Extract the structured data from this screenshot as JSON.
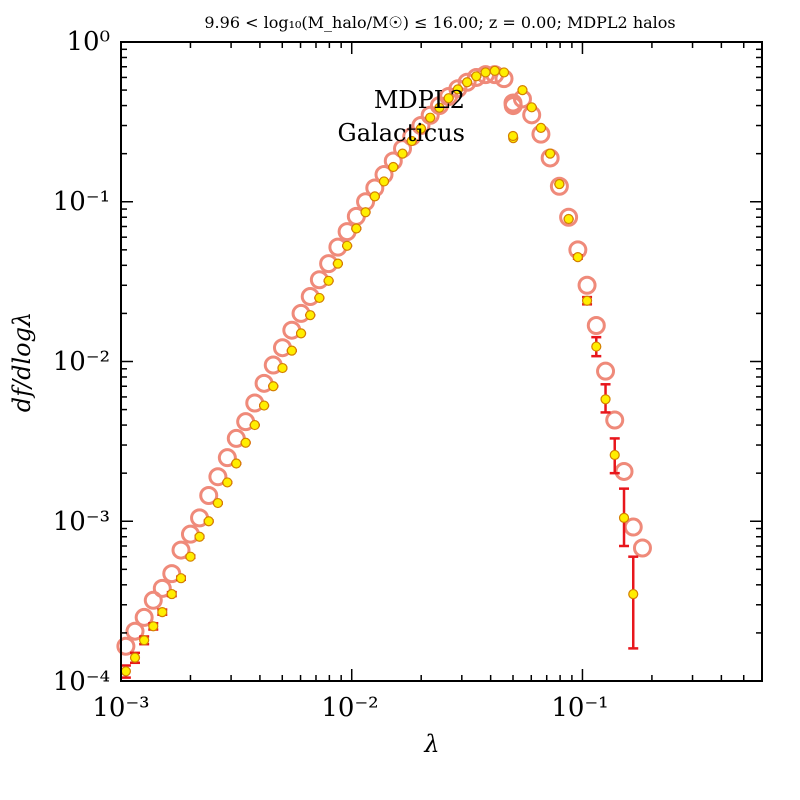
{
  "chart_data": {
    "type": "scatter",
    "title": "9.96 < log₁₀(M_halo/M☉) ≤ 16.00; z = 0.00; MDPL2 halos",
    "xlabel": "λ",
    "ylabel": "df/dlogλ",
    "x_scale": "log",
    "y_scale": "log",
    "xlim": [
      0.001,
      0.6
    ],
    "ylim": [
      0.0001,
      1.0
    ],
    "x_tick_labels": [
      "10⁻³",
      "10⁻²",
      "10⁻¹"
    ],
    "y_tick_labels": [
      "10⁻⁴",
      "10⁻³",
      "10⁻²",
      "10⁻¹",
      "10⁰"
    ],
    "legend_position": "upper-center",
    "series": [
      {
        "name": "MDPL2",
        "marker": "open-circle",
        "color": "#ef8a7a",
        "points": [
          [
            0.00105,
            0.000165
          ],
          [
            0.00115,
            0.000205
          ],
          [
            0.00126,
            0.00025
          ],
          [
            0.00138,
            0.00032
          ],
          [
            0.00151,
            0.00038
          ],
          [
            0.00166,
            0.00047
          ],
          [
            0.00182,
            0.00066
          ],
          [
            0.002,
            0.00083
          ],
          [
            0.00219,
            0.00105
          ],
          [
            0.0024,
            0.00145
          ],
          [
            0.00263,
            0.0019
          ],
          [
            0.00289,
            0.0025
          ],
          [
            0.00316,
            0.0033
          ],
          [
            0.00347,
            0.0042
          ],
          [
            0.0038,
            0.0055
          ],
          [
            0.00417,
            0.0073
          ],
          [
            0.00457,
            0.0095
          ],
          [
            0.00501,
            0.0122
          ],
          [
            0.0055,
            0.0157
          ],
          [
            0.00603,
            0.02
          ],
          [
            0.00661,
            0.0255
          ],
          [
            0.00724,
            0.0325
          ],
          [
            0.00794,
            0.041
          ],
          [
            0.00871,
            0.052
          ],
          [
            0.00955,
            0.065
          ],
          [
            0.01047,
            0.081
          ],
          [
            0.01148,
            0.1
          ],
          [
            0.01259,
            0.122
          ],
          [
            0.0138,
            0.148
          ],
          [
            0.01514,
            0.18
          ],
          [
            0.0166,
            0.215
          ],
          [
            0.0182,
            0.256
          ],
          [
            0.01995,
            0.3
          ],
          [
            0.02188,
            0.348
          ],
          [
            0.02399,
            0.4
          ],
          [
            0.0263,
            0.456
          ],
          [
            0.02884,
            0.51
          ],
          [
            0.03162,
            0.56
          ],
          [
            0.03467,
            0.6
          ],
          [
            0.03802,
            0.625
          ],
          [
            0.04169,
            0.625
          ],
          [
            0.04571,
            0.59
          ],
          [
            0.05012,
            0.4
          ],
          [
            0.05496,
            0.44
          ],
          [
            0.06026,
            0.35
          ],
          [
            0.06607,
            0.265
          ],
          [
            0.07244,
            0.188
          ],
          [
            0.07943,
            0.125
          ],
          [
            0.0871,
            0.08
          ],
          [
            0.0955,
            0.05
          ],
          [
            0.1047,
            0.03
          ],
          [
            0.1148,
            0.0168
          ],
          [
            0.1259,
            0.0087
          ],
          [
            0.138,
            0.0043
          ],
          [
            0.1514,
            0.00205
          ],
          [
            0.166,
            0.00092
          ],
          [
            0.182,
            0.00068
          ]
        ]
      },
      {
        "name": "Galacticus",
        "marker": "filled-circle",
        "color": "#ffee00",
        "points": [
          [
            0.00105,
            0.000115
          ],
          [
            0.00115,
            0.00014
          ],
          [
            0.00126,
            0.00018
          ],
          [
            0.00138,
            0.00022
          ],
          [
            0.00151,
            0.00027
          ],
          [
            0.00166,
            0.00035
          ],
          [
            0.00182,
            0.00044
          ],
          [
            0.002,
            0.0006
          ],
          [
            0.00219,
            0.0008
          ],
          [
            0.0024,
            0.001
          ],
          [
            0.00263,
            0.0013
          ],
          [
            0.00289,
            0.00175
          ],
          [
            0.00316,
            0.0023
          ],
          [
            0.00347,
            0.0031
          ],
          [
            0.0038,
            0.004
          ],
          [
            0.00417,
            0.0053
          ],
          [
            0.00457,
            0.007
          ],
          [
            0.00501,
            0.0091
          ],
          [
            0.0055,
            0.0117
          ],
          [
            0.00603,
            0.015
          ],
          [
            0.00661,
            0.0195
          ],
          [
            0.00724,
            0.025
          ],
          [
            0.00794,
            0.032
          ],
          [
            0.00871,
            0.041
          ],
          [
            0.00955,
            0.053
          ],
          [
            0.01047,
            0.068
          ],
          [
            0.01148,
            0.086
          ],
          [
            0.01259,
            0.108
          ],
          [
            0.0138,
            0.134
          ],
          [
            0.01514,
            0.165
          ],
          [
            0.0166,
            0.2
          ],
          [
            0.0182,
            0.24
          ],
          [
            0.01995,
            0.287
          ],
          [
            0.02188,
            0.336
          ],
          [
            0.02399,
            0.388
          ],
          [
            0.0263,
            0.445
          ],
          [
            0.02884,
            0.505
          ],
          [
            0.03162,
            0.56
          ],
          [
            0.03467,
            0.61
          ],
          [
            0.03802,
            0.645
          ],
          [
            0.04169,
            0.66
          ],
          [
            0.04571,
            0.645
          ],
          [
            0.05012,
            0.25
          ],
          [
            0.05496,
            0.5
          ],
          [
            0.06026,
            0.39
          ],
          [
            0.06607,
            0.29
          ],
          [
            0.07244,
            0.2
          ],
          [
            0.07943,
            0.129
          ],
          [
            0.0871,
            0.078
          ],
          [
            0.0955,
            0.045
          ],
          [
            0.1047,
            0.024
          ],
          [
            0.1148,
            0.0124
          ],
          [
            0.1259,
            0.0058
          ],
          [
            0.138,
            0.0026
          ],
          [
            0.1514,
            0.00105
          ],
          [
            0.166,
            0.00035
          ]
        ],
        "error_bars": [
          [
            0.00105,
            0.000105,
            0.000125
          ],
          [
            0.00115,
            0.00013,
            0.00015
          ],
          [
            0.00126,
            0.00017,
            0.00019
          ],
          [
            0.00138,
            0.00021,
            0.00023
          ],
          [
            0.00151,
            0.00026,
            0.00028
          ],
          [
            0.00166,
            0.00034,
            0.00036
          ],
          [
            0.00182,
            0.00043,
            0.00045
          ],
          [
            0.002,
            0.00059,
            0.00061
          ],
          [
            0.00219,
            0.00079,
            0.00081
          ],
          [
            0.0024,
            0.00099,
            0.00101
          ],
          [
            0.00263,
            0.00129,
            0.00131
          ],
          [
            0.00289,
            0.00174,
            0.00176
          ],
          [
            0.00316,
            0.00229,
            0.00231
          ],
          [
            0.00347,
            0.00309,
            0.00311
          ],
          [
            0.0038,
            0.00399,
            0.00401
          ],
          [
            0.00417,
            0.00529,
            0.00531
          ],
          [
            0.00457,
            0.00699,
            0.00701
          ],
          [
            0.00501,
            0.00909,
            0.00911
          ],
          [
            0.0055,
            0.01169,
            0.01171
          ],
          [
            0.00603,
            0.01499,
            0.01501
          ],
          [
            0.00661,
            0.01949,
            0.01951
          ],
          [
            0.00724,
            0.02499,
            0.02501
          ],
          [
            0.00794,
            0.03199,
            0.03201
          ],
          [
            0.00871,
            0.04099,
            0.04101
          ],
          [
            0.00955,
            0.05299,
            0.05301
          ],
          [
            0.01047,
            0.06799,
            0.06801
          ],
          [
            0.01148,
            0.08599,
            0.08601
          ],
          [
            0.01259,
            0.10799,
            0.10801
          ],
          [
            0.0138,
            0.13399,
            0.13401
          ],
          [
            0.01514,
            0.16499,
            0.16501
          ],
          [
            0.0166,
            0.19999,
            0.20001
          ],
          [
            0.0182,
            0.23999,
            0.24001
          ],
          [
            0.01995,
            0.28699,
            0.28701
          ],
          [
            0.02188,
            0.33599,
            0.33601
          ],
          [
            0.02399,
            0.38799,
            0.38801
          ],
          [
            0.0263,
            0.44499,
            0.44501
          ],
          [
            0.02884,
            0.50499,
            0.50501
          ],
          [
            0.03162,
            0.55999,
            0.56001
          ],
          [
            0.03467,
            0.60999,
            0.61001
          ],
          [
            0.03802,
            0.64499,
            0.64501
          ],
          [
            0.04169,
            0.65999,
            0.66001
          ],
          [
            0.04571,
            0.64499,
            0.64501
          ],
          [
            0.05496,
            0.49999,
            0.50001
          ],
          [
            0.06026,
            0.38999,
            0.39001
          ],
          [
            0.06607,
            0.28999,
            0.29001
          ],
          [
            0.07244,
            0.19999,
            0.20001
          ],
          [
            0.07943,
            0.12899,
            0.12901
          ],
          [
            0.0871,
            0.07799,
            0.07801
          ],
          [
            0.0955,
            0.044,
            0.0462
          ],
          [
            0.1047,
            0.0228,
            0.0253
          ],
          [
            0.1148,
            0.0108,
            0.0142
          ],
          [
            0.1259,
            0.0048,
            0.0072
          ],
          [
            0.138,
            0.002,
            0.0033
          ],
          [
            0.1514,
            0.0007,
            0.0016
          ],
          [
            0.166,
            0.00016,
            0.0006
          ]
        ]
      }
    ]
  },
  "colors": {
    "mdpl2_marker": "#ef8a7a",
    "galacticus_fill": "#ffee00",
    "galacticus_edge": "#d48000",
    "error_bar": "#e8161c",
    "axes": "#000000"
  }
}
